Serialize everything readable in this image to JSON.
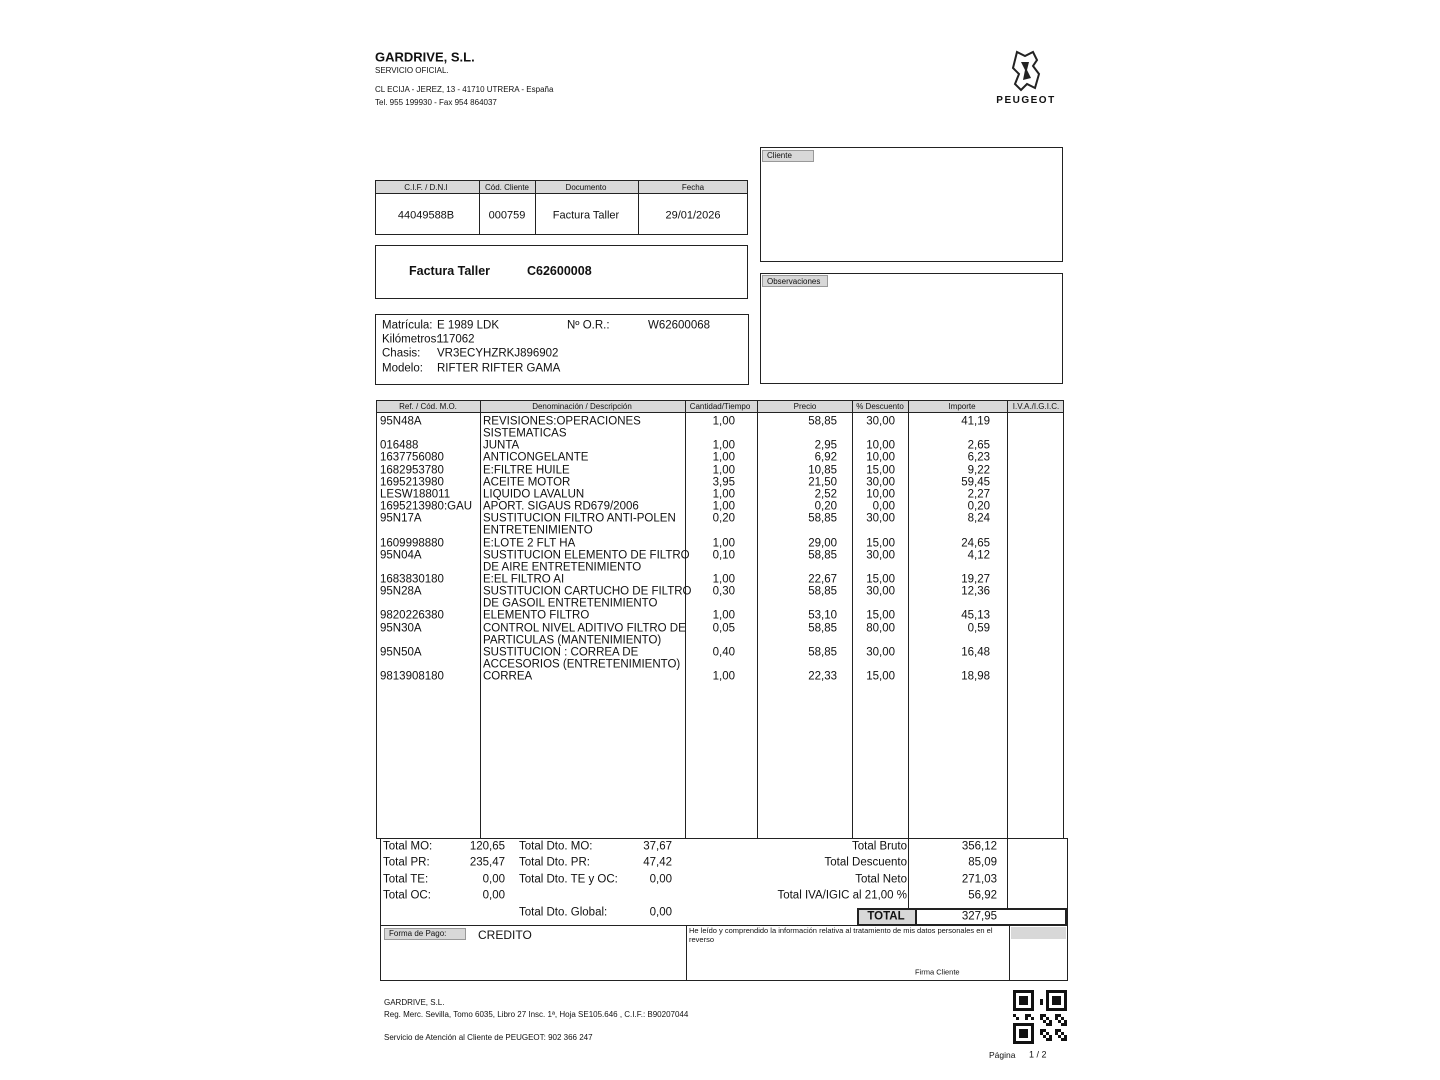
{
  "header": {
    "company": "GARDRIVE, S.L.",
    "subtitle": "SERVICIO OFICIAL.",
    "address": "CL  ECIJA - JEREZ, 13 - 41710 UTRERA - España",
    "phone": "Tel. 955 199930 - Fax 954 864037",
    "brand": "PEUGEOT"
  },
  "info_table": {
    "headers": [
      "C.I.F. / D.N.I",
      "Cód. Cliente",
      "Documento",
      "Fecha"
    ],
    "values": [
      "44049588B",
      "000759",
      "Factura Taller",
      "29/01/2026"
    ]
  },
  "client_box": {
    "label": "Cliente"
  },
  "observations_box": {
    "label": "Observaciones"
  },
  "invoice": {
    "label": "Factura Taller",
    "number": "C62600008"
  },
  "vehicle": {
    "plate_label": "Matrícula:",
    "plate": "E 1989 LDK",
    "order_label": "Nº O.R.:",
    "order": "W62600068",
    "km_label": "Kilómetros:",
    "km": "117062",
    "chassis_label": "Chasis:",
    "chassis": "VR3ECYHZRKJ896902",
    "model_label": "Modelo:",
    "model": "RIFTER RIFTER GAMA"
  },
  "lines": {
    "headers": [
      "Ref. / Cód. M.O.",
      "Denominación / Descripción",
      "Cantidad/Tiempo",
      "Precio",
      "% Descuento",
      "Importe",
      "I.V.A./I.G.I.C."
    ],
    "rows": [
      {
        "ref": "95N48A",
        "description": [
          "REVISIONES:OPERACIONES",
          "SISTEMATICAS"
        ],
        "quantity": "1,00",
        "price": "58,85",
        "discount": "30,00",
        "amount": "41,19"
      },
      {
        "ref": "016488",
        "description": [
          "JUNTA"
        ],
        "quantity": "1,00",
        "price": "2,95",
        "discount": "10,00",
        "amount": "2,65"
      },
      {
        "ref": "1637756080",
        "description": [
          "ANTICONGELANTE"
        ],
        "quantity": "1,00",
        "price": "6,92",
        "discount": "10,00",
        "amount": "6,23"
      },
      {
        "ref": "1682953780",
        "description": [
          "E:FILTRE HUILE"
        ],
        "quantity": "1,00",
        "price": "10,85",
        "discount": "15,00",
        "amount": "9,22"
      },
      {
        "ref": "1695213980",
        "description": [
          "ACEITE MOTOR"
        ],
        "quantity": "3,95",
        "price": "21,50",
        "discount": "30,00",
        "amount": "59,45"
      },
      {
        "ref": "LESW188011",
        "description": [
          "LIQUIDO LAVALUN"
        ],
        "quantity": "1,00",
        "price": "2,52",
        "discount": "10,00",
        "amount": "2,27"
      },
      {
        "ref": "1695213980:GAU",
        "description": [
          "APORT. SIGAUS RD679/2006"
        ],
        "quantity": "1,00",
        "price": "0,20",
        "discount": "0,00",
        "amount": "0,20"
      },
      {
        "ref": "95N17A",
        "description": [
          "SUSTITUCION FILTRO ANTI-POLEN",
          "ENTRETENIMIENTO"
        ],
        "quantity": "0,20",
        "price": "58,85",
        "discount": "30,00",
        "amount": "8,24"
      },
      {
        "ref": "1609998880",
        "description": [
          "E:LOTE 2 FLT HA"
        ],
        "quantity": "1,00",
        "price": "29,00",
        "discount": "15,00",
        "amount": "24,65"
      },
      {
        "ref": "95N04A",
        "description": [
          "SUSTITUCION ELEMENTO DE FILTRO",
          "DE AIRE ENTRETENIMIENTO"
        ],
        "quantity": "0,10",
        "price": "58,85",
        "discount": "30,00",
        "amount": "4,12"
      },
      {
        "ref": "1683830180",
        "description": [
          "E:EL FILTRO AI"
        ],
        "quantity": "1,00",
        "price": "22,67",
        "discount": "15,00",
        "amount": "19,27"
      },
      {
        "ref": "95N28A",
        "description": [
          "SUSTITUCION CARTUCHO DE FILTRO",
          "DE GASOIL ENTRETENIMIENTO"
        ],
        "quantity": "0,30",
        "price": "58,85",
        "discount": "30,00",
        "amount": "12,36"
      },
      {
        "ref": "9820226380",
        "description": [
          "ELEMENTO FILTRO"
        ],
        "quantity": "1,00",
        "price": "53,10",
        "discount": "15,00",
        "amount": "45,13"
      },
      {
        "ref": "95N30A",
        "description": [
          "CONTROL NIVEL ADITIVO FILTRO DE",
          "PARTICULAS (MANTENIMIENTO)"
        ],
        "quantity": "0,05",
        "price": "58,85",
        "discount": "80,00",
        "amount": "0,59"
      },
      {
        "ref": "95N50A",
        "description": [
          "SUSTITUCION : CORREA DE",
          "ACCESORIOS (ENTRETENIMIENTO)"
        ],
        "quantity": "0,40",
        "price": "58,85",
        "discount": "30,00",
        "amount": "16,48"
      },
      {
        "ref": "9813908180",
        "description": [
          "CORREA"
        ],
        "quantity": "1,00",
        "price": "22,33",
        "discount": "15,00",
        "amount": "18,98"
      }
    ]
  },
  "totals": {
    "left": [
      {
        "label": "Total MO:",
        "value": "120,65"
      },
      {
        "label": "Total PR:",
        "value": "235,47"
      },
      {
        "label": "Total TE:",
        "value": "0,00"
      },
      {
        "label": "Total OC:",
        "value": "0,00"
      }
    ],
    "middle": [
      {
        "label": "Total Dto. MO:",
        "value": "37,67"
      },
      {
        "label": "Total Dto. PR:",
        "value": "47,42"
      },
      {
        "label": "Total Dto. TE y OC:",
        "value": "0,00"
      },
      {
        "label": "Total Dto. Global:",
        "value": "0,00"
      }
    ],
    "right": [
      {
        "label": "Total Bruto",
        "value": "356,12"
      },
      {
        "label": "Total Descuento",
        "value": "85,09"
      },
      {
        "label": "Total Neto",
        "value": "271,03"
      },
      {
        "label": "Total IVA/IGIC al 21,00 %",
        "value": "56,92"
      }
    ],
    "total_label": "TOTAL",
    "total_value": "327,95"
  },
  "payment": {
    "label": "Forma de Pago:",
    "value": "CREDITO",
    "consent": "He leído y comprendido la información relativa al tratamiento de mis datos personales en el reverso",
    "signature": "Firma Cliente"
  },
  "footer": {
    "company": "GARDRIVE, S.L.",
    "registry": "Reg. Merc. Sevilla, Tomo 6035, Libro 27 Insc. 1ª, Hoja SE105.646  , C.I.F.:  B90207044",
    "service": "Servicio de Atención al Cliente de PEUGEOT: 902 366 247",
    "page_label": "Página",
    "page_number": "1 / 2"
  }
}
